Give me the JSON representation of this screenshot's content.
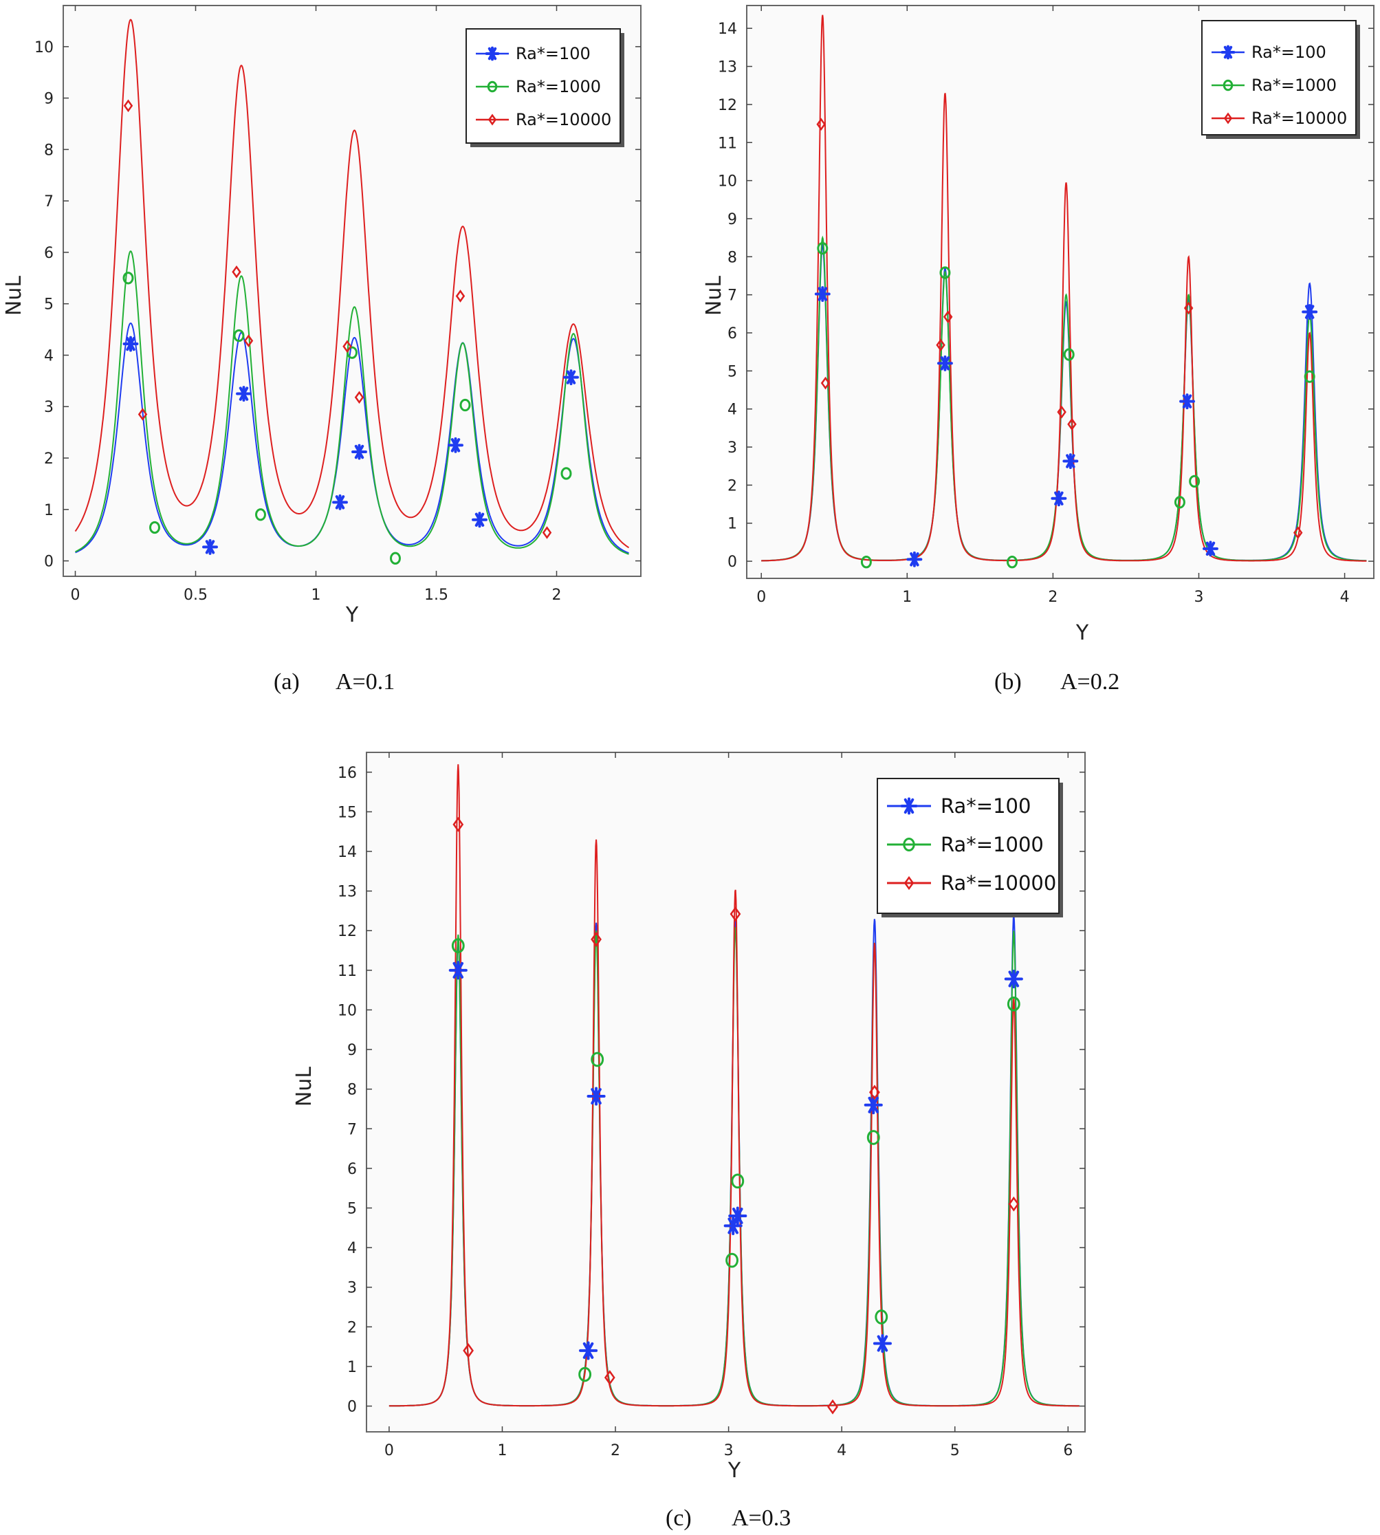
{
  "figure": {
    "colors": {
      "Ra*=100": "#1f3cf0",
      "Ra*=1000": "#22b036",
      "Ra*=10000": "#dd1f1f"
    }
  },
  "chart_data": [
    {
      "type": "line",
      "panel": "a",
      "caption_label": "(a)",
      "caption_text": "A=0.1",
      "xlabel": "Y",
      "ylabel": "NuL",
      "xlim": [
        -0.05,
        2.35
      ],
      "ylim": [
        -0.3,
        10.8
      ],
      "xticks": [
        0,
        0.5,
        1,
        1.5,
        2
      ],
      "xtick_labels": [
        "0",
        "0.5",
        "1",
        "1.5",
        "2"
      ],
      "yticks": [
        0,
        1,
        2,
        3,
        4,
        5,
        6,
        7,
        8,
        9,
        10
      ],
      "ytick_labels": [
        "0",
        "1",
        "2",
        "3",
        "4",
        "5",
        "6",
        "7",
        "8",
        "9",
        "10"
      ],
      "x_range": [
        0,
        2.3
      ],
      "peaks": [
        0.23,
        0.69,
        1.16,
        1.61,
        2.07
      ],
      "legend_position": "top-right",
      "series": [
        {
          "name": "Ra*=100",
          "marker": "star",
          "heights": [
            4.6,
            4.4,
            4.3,
            4.2,
            4.3
          ],
          "widths": [
            0.085,
            0.085,
            0.085,
            0.085,
            0.085
          ],
          "markers": [
            [
              0.23,
              4.22
            ],
            [
              0.56,
              0.27
            ],
            [
              0.7,
              3.25
            ],
            [
              1.1,
              1.14
            ],
            [
              1.18,
              2.12
            ],
            [
              1.58,
              2.25
            ],
            [
              1.68,
              0.8
            ],
            [
              2.06,
              3.57
            ]
          ]
        },
        {
          "name": "Ra*=1000",
          "marker": "circle",
          "heights": [
            6.0,
            5.5,
            4.9,
            4.2,
            4.4
          ],
          "widths": [
            0.08,
            0.08,
            0.08,
            0.08,
            0.08
          ],
          "markers": [
            [
              0.22,
              5.5
            ],
            [
              0.33,
              0.65
            ],
            [
              0.68,
              4.38
            ],
            [
              0.77,
              0.9
            ],
            [
              1.15,
              4.05
            ],
            [
              1.33,
              0.05
            ],
            [
              1.62,
              3.03
            ],
            [
              2.04,
              1.7
            ]
          ]
        },
        {
          "name": "Ra*=10000",
          "marker": "diamond",
          "heights": [
            10.45,
            9.5,
            8.25,
            6.4,
            4.55
          ],
          "widths": [
            0.1,
            0.1,
            0.1,
            0.1,
            0.1
          ],
          "markers": [
            [
              0.22,
              8.85
            ],
            [
              0.28,
              2.85
            ],
            [
              0.67,
              5.62
            ],
            [
              0.72,
              4.28
            ],
            [
              1.13,
              4.17
            ],
            [
              1.18,
              3.18
            ],
            [
              1.6,
              5.15
            ],
            [
              1.96,
              0.55
            ]
          ]
        }
      ]
    },
    {
      "type": "line",
      "panel": "b",
      "caption_label": "(b)",
      "caption_text": "A=0.2",
      "xlabel": "Y",
      "ylabel": "NuL",
      "xlim": [
        -0.1,
        4.2
      ],
      "ylim": [
        -0.45,
        14.6
      ],
      "xticks": [
        0,
        1,
        2,
        3,
        4
      ],
      "xtick_labels": [
        "0",
        "1",
        "2",
        "3",
        "4"
      ],
      "yticks": [
        0,
        1,
        2,
        3,
        4,
        5,
        6,
        7,
        8,
        9,
        10,
        11,
        12,
        13,
        14
      ],
      "ytick_labels": [
        "0",
        "1",
        "2",
        "3",
        "4",
        "5",
        "6",
        "7",
        "8",
        "9",
        "10",
        "11",
        "12",
        "13",
        "14"
      ],
      "x_range": [
        0,
        4.15
      ],
      "peaks": [
        0.42,
        1.26,
        2.09,
        2.93,
        3.76
      ],
      "legend_position": "top-right",
      "series": [
        {
          "name": "Ra*=100",
          "marker": "star",
          "heights": [
            8.3,
            7.7,
            6.8,
            6.9,
            7.3
          ],
          "widths": [
            0.055,
            0.055,
            0.055,
            0.055,
            0.055
          ],
          "markers": [
            [
              0.42,
              7.02
            ],
            [
              1.05,
              0.05
            ],
            [
              1.26,
              5.2
            ],
            [
              2.04,
              1.65
            ],
            [
              2.12,
              2.63
            ],
            [
              2.92,
              4.2
            ],
            [
              3.08,
              0.33
            ],
            [
              3.76,
              6.55
            ]
          ]
        },
        {
          "name": "Ra*=1000",
          "marker": "circle",
          "heights": [
            8.5,
            7.6,
            7.0,
            7.0,
            6.5
          ],
          "widths": [
            0.055,
            0.055,
            0.055,
            0.055,
            0.055
          ],
          "markers": [
            [
              0.42,
              8.22
            ],
            [
              0.72,
              -0.02
            ],
            [
              1.26,
              7.58
            ],
            [
              1.72,
              -0.02
            ],
            [
              2.11,
              5.43
            ],
            [
              2.87,
              1.55
            ],
            [
              2.97,
              2.1
            ],
            [
              3.76,
              4.85
            ]
          ]
        },
        {
          "name": "Ra*=10000",
          "marker": "diamond",
          "heights": [
            14.35,
            12.3,
            9.95,
            8.0,
            6.0
          ],
          "widths": [
            0.045,
            0.045,
            0.045,
            0.045,
            0.045
          ],
          "markers": [
            [
              0.41,
              11.48
            ],
            [
              0.44,
              4.68
            ],
            [
              1.23,
              5.68
            ],
            [
              1.28,
              6.42
            ],
            [
              2.06,
              3.92
            ],
            [
              2.13,
              3.6
            ],
            [
              2.93,
              6.65
            ],
            [
              3.68,
              0.75
            ]
          ]
        }
      ]
    },
    {
      "type": "line",
      "panel": "c",
      "caption_label": "(c)",
      "caption_text": "A=0.3",
      "xlabel": "Y",
      "ylabel": "NuL",
      "xlim": [
        -0.2,
        6.15
      ],
      "ylim": [
        -0.65,
        16.5
      ],
      "xticks": [
        0,
        1,
        2,
        3,
        4,
        5,
        6
      ],
      "xtick_labels": [
        "0",
        "1",
        "2",
        "3",
        "4",
        "5",
        "6"
      ],
      "yticks": [
        0,
        1,
        2,
        3,
        4,
        5,
        6,
        7,
        8,
        9,
        10,
        11,
        12,
        13,
        14,
        15,
        16
      ],
      "ytick_labels": [
        "0",
        "1",
        "2",
        "3",
        "4",
        "5",
        "6",
        "7",
        "8",
        "9",
        "10",
        "11",
        "12",
        "13",
        "14",
        "15",
        "16"
      ],
      "x_range": [
        0,
        6.1
      ],
      "peaks": [
        0.61,
        1.83,
        3.06,
        4.29,
        5.52
      ],
      "legend_position": "top-right",
      "series": [
        {
          "name": "Ra*=100",
          "marker": "star",
          "heights": [
            11.8,
            12.2,
            12.3,
            12.3,
            12.4
          ],
          "widths": [
            0.05,
            0.05,
            0.05,
            0.05,
            0.05
          ],
          "markers": [
            [
              0.61,
              11.0
            ],
            [
              1.76,
              1.4
            ],
            [
              1.83,
              7.82
            ],
            [
              3.04,
              4.55
            ],
            [
              3.08,
              4.8
            ],
            [
              4.28,
              7.6
            ],
            [
              4.36,
              1.58
            ],
            [
              5.52,
              10.78
            ]
          ]
        },
        {
          "name": "Ra*=1000",
          "marker": "circle",
          "heights": [
            11.9,
            12.0,
            12.1,
            11.7,
            12.0
          ],
          "widths": [
            0.05,
            0.05,
            0.05,
            0.05,
            0.05
          ],
          "markers": [
            [
              0.61,
              11.62
            ],
            [
              1.73,
              0.8
            ],
            [
              1.84,
              8.75
            ],
            [
              3.03,
              3.68
            ],
            [
              3.08,
              5.68
            ],
            [
              4.28,
              6.78
            ],
            [
              4.35,
              2.25
            ],
            [
              5.52,
              10.15
            ]
          ]
        },
        {
          "name": "Ra*=10000",
          "marker": "diamond",
          "heights": [
            16.2,
            14.3,
            13.05,
            11.7,
            10.3
          ],
          "widths": [
            0.045,
            0.045,
            0.045,
            0.045,
            0.045
          ],
          "markers": [
            [
              0.61,
              14.68
            ],
            [
              0.7,
              1.4
            ],
            [
              1.83,
              11.78
            ],
            [
              1.95,
              0.72
            ],
            [
              3.06,
              12.42
            ],
            [
              3.92,
              -0.02
            ],
            [
              4.29,
              7.92
            ],
            [
              5.52,
              5.1
            ]
          ]
        }
      ]
    }
  ]
}
